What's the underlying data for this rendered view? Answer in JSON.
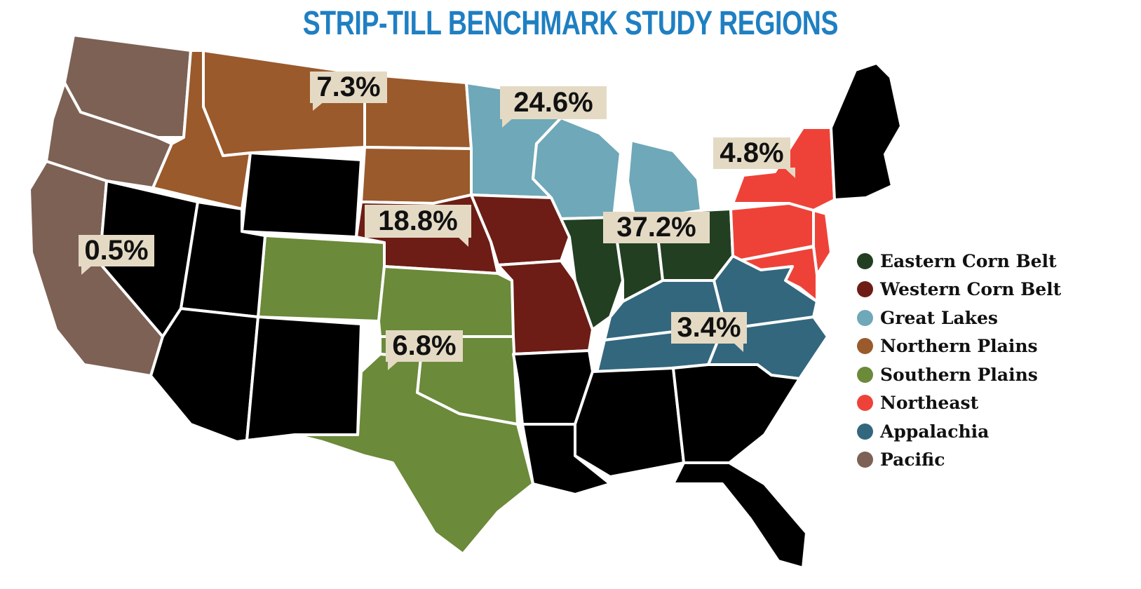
{
  "title": "STRIP-TILL BENCHMARK STUDY REGIONS",
  "colors": {
    "eastern_corn_belt": "#233f22",
    "western_corn_belt": "#6d1d15",
    "great_lakes": "#6fa8b8",
    "northern_plains": "#9a5a2c",
    "southern_plains": "#6b8a3a",
    "northeast": "#ee4239",
    "appalachia": "#33677e",
    "pacific": "#7d6155",
    "other": "#000000"
  },
  "regions": [
    {
      "name": "Eastern Corn Belt",
      "color": "#233f22",
      "percent": "37.2%"
    },
    {
      "name": "Western Corn Belt",
      "color": "#6d1d15",
      "percent": "18.8%"
    },
    {
      "name": "Great Lakes",
      "color": "#6fa8b8",
      "percent": "24.6%"
    },
    {
      "name": "Northern Plains",
      "color": "#9a5a2c",
      "percent": "7.3%"
    },
    {
      "name": "Southern Plains",
      "color": "#6b8a3a",
      "percent": "6.8%"
    },
    {
      "name": "Northeast",
      "color": "#ee4239",
      "percent": "4.8%"
    },
    {
      "name": "Appalachia",
      "color": "#33677e",
      "percent": "3.4%"
    },
    {
      "name": "Pacific",
      "color": "#7d6155",
      "percent": "0.5%"
    }
  ]
}
